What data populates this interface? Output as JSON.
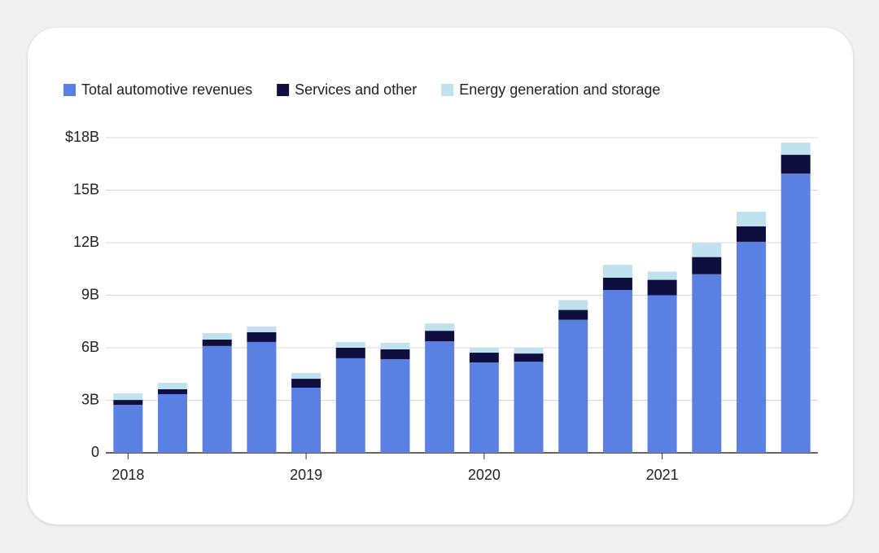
{
  "chart_data": {
    "type": "stacked_bar",
    "categories": [
      "2018",
      null,
      null,
      null,
      "2019",
      null,
      null,
      null,
      "2020",
      null,
      null,
      null,
      "2021",
      null,
      null,
      null
    ],
    "series": [
      {
        "name": "Total automotive revenues",
        "color": "#5b80e4",
        "values": [
          2.74,
          3.35,
          6.1,
          6.33,
          3.72,
          5.4,
          5.35,
          6.37,
          5.16,
          5.2,
          7.6,
          9.3,
          9.0,
          10.2,
          12.05,
          15.95
        ]
      },
      {
        "name": "Services and other",
        "color": "#0e0f3f",
        "values": [
          0.28,
          0.28,
          0.37,
          0.56,
          0.51,
          0.6,
          0.56,
          0.6,
          0.56,
          0.47,
          0.56,
          0.7,
          0.88,
          0.98,
          0.88,
          1.07
        ]
      },
      {
        "name": "Energy generation and storage",
        "color": "#c0e1ee",
        "values": [
          0.37,
          0.37,
          0.37,
          0.33,
          0.33,
          0.33,
          0.37,
          0.42,
          0.28,
          0.33,
          0.56,
          0.74,
          0.47,
          0.79,
          0.84,
          0.7
        ]
      }
    ],
    "ylim": [
      0,
      18
    ],
    "yticks": [
      0,
      {
        "value": 3,
        "label": "3B"
      },
      {
        "value": 6,
        "label": "6B"
      },
      {
        "value": 9,
        "label": "9B"
      },
      {
        "value": 12,
        "label": "12B"
      },
      {
        "value": 15,
        "label": "15B"
      },
      {
        "value": 18,
        "label": "$18B"
      }
    ],
    "grid": true
  }
}
